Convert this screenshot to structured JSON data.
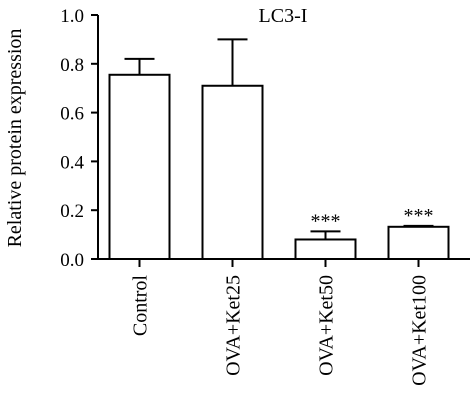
{
  "chart_data": {
    "type": "bar",
    "title": "LC3-I",
    "ylabel": "Relative protein expression",
    "xlabel": "",
    "categories": [
      "Control",
      "OVA+Ket25",
      "OVA+Ket50",
      "OVA+Ket100"
    ],
    "values": [
      0.755,
      0.71,
      0.08,
      0.132
    ],
    "errors": [
      0.065,
      0.19,
      0.033,
      0.004
    ],
    "annotations": [
      "",
      "",
      "***",
      "***"
    ],
    "ylim": [
      0,
      1.0
    ],
    "yticks": [
      "0.0",
      "0.2",
      "0.4",
      "0.6",
      "0.8",
      "1.0"
    ],
    "bar_color": "#ffffff",
    "line_color": "#000000",
    "grid": false
  }
}
